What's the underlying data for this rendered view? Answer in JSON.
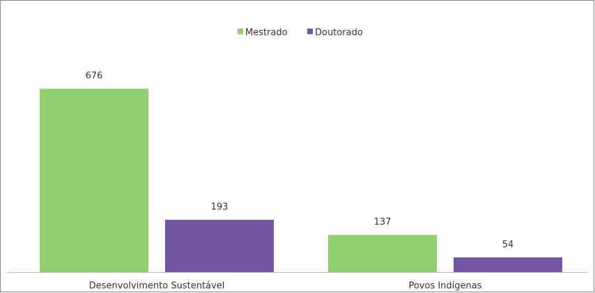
{
  "chart_data": {
    "type": "bar",
    "categories": [
      "Desenvolvimento Sustentável",
      "Povos Indígenas"
    ],
    "series": [
      {
        "name": "Mestrado",
        "color": "#92d06f",
        "values": [
          676,
          137
        ]
      },
      {
        "name": "Doutorado",
        "color": "#7454a4",
        "values": [
          193,
          54
        ]
      }
    ],
    "ylim": [
      0,
      800
    ],
    "legend": "top"
  }
}
